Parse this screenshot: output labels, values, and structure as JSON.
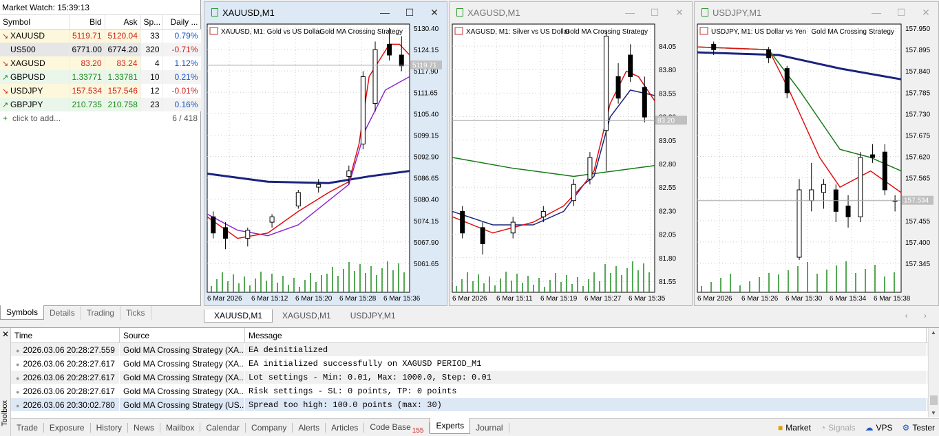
{
  "market_watch": {
    "title": "Market Watch: 15:39:13",
    "columns": [
      "Symbol",
      "Bid",
      "Ask",
      "Sp...",
      "Daily ..."
    ],
    "rows": [
      {
        "symbol": "XAUUSD",
        "dir": "down",
        "bid": "5119.71",
        "ask": "5120.04",
        "spread": "33",
        "daily": "0.79%",
        "daily_sign": "pos",
        "bg": "#fdf7dc"
      },
      {
        "symbol": "US500",
        "dir": "none",
        "bid": "6771.00",
        "ask": "6774.20",
        "spread": "320",
        "daily": "-0.71%",
        "daily_sign": "neg",
        "bg": "#e6e6e6"
      },
      {
        "symbol": "XAGUSD",
        "dir": "down",
        "bid": "83.20",
        "ask": "83.24",
        "spread": "4",
        "daily": "1.12%",
        "daily_sign": "pos",
        "bg": "#fdf7dc"
      },
      {
        "symbol": "GBPUSD",
        "dir": "up",
        "bid": "1.33771",
        "ask": "1.33781",
        "spread": "10",
        "daily": "0.21%",
        "daily_sign": "pos",
        "bg": "#eaf6ea"
      },
      {
        "symbol": "USDJPY",
        "dir": "down",
        "bid": "157.534",
        "ask": "157.546",
        "spread": "12",
        "daily": "-0.01%",
        "daily_sign": "neg",
        "bg": "#fdf7dc"
      },
      {
        "symbol": "GBPJPY",
        "dir": "up",
        "bid": "210.735",
        "ask": "210.758",
        "spread": "23",
        "daily": "0.16%",
        "daily_sign": "pos",
        "bg": "#eaf6ea"
      }
    ],
    "add_label": "click to add...",
    "count": "6 / 418",
    "tabs": [
      "Symbols",
      "Details",
      "Trading",
      "Ticks"
    ]
  },
  "charts": [
    {
      "title": "XAUUSD,M1",
      "info": "XAUUSD, M1:  Gold vs US Dollar",
      "ea": "Gold MA Crossing Strategy",
      "active": true,
      "price_labels": [
        "5130.40",
        "5124.15",
        "5117.90",
        "5111.65",
        "5105.40",
        "5099.15",
        "5092.90",
        "5086.65",
        "5080.40",
        "5074.15",
        "5067.90",
        "5061.65"
      ],
      "current_price": "5119.71",
      "time_labels": [
        "6 Mar 2026",
        "6 Mar 15:12",
        "6 Mar 15:20",
        "6 Mar 15:28",
        "6 Mar 15:36"
      ]
    },
    {
      "title": "XAGUSD,M1",
      "info": "XAGUSD, M1:  Silver vs US Dollar",
      "ea": "Gold MA Crossing Strategy",
      "active": false,
      "price_labels": [
        "84.05",
        "83.80",
        "83.55",
        "83.30",
        "83.05",
        "82.80",
        "82.55",
        "82.30",
        "82.05",
        "81.80",
        "81.55"
      ],
      "current_price": "83.20",
      "time_labels": [
        "6 Mar 2026",
        "6 Mar 15:11",
        "6 Mar 15:19",
        "6 Mar 15:27",
        "6 Mar 15:35"
      ]
    },
    {
      "title": "USDJPY,M1",
      "info": "USDJPY, M1:  US Dollar vs Yen",
      "ea": "Gold MA Crossing Strategy",
      "active": false,
      "price_labels": [
        "157.950",
        "157.895",
        "157.840",
        "157.785",
        "157.730",
        "157.675",
        "157.620",
        "157.565",
        "157.510",
        "157.455",
        "157.400",
        "157.345"
      ],
      "current_price": "157.534",
      "time_labels": [
        "6 Mar 2026",
        "6 Mar 15:26",
        "6 Mar 15:30",
        "6 Mar 15:34",
        "6 Mar 15:38"
      ]
    }
  ],
  "chart_tabs": [
    "XAUUSD,M1",
    "XAGUSD,M1",
    "USDJPY,M1"
  ],
  "toolbox": {
    "side_label": "Toolbox",
    "columns": [
      "Time",
      "Source",
      "Message"
    ],
    "rows": [
      {
        "time": "2026.03.06 20:28:27.559",
        "source": "Gold MA Crossing Strategy (XA...",
        "message": "EA deinitialized"
      },
      {
        "time": "2026.03.06 20:28:27.617",
        "source": "Gold MA Crossing Strategy (XA...",
        "message": "EA initialized successfully on XAGUSD PERIOD_M1"
      },
      {
        "time": "2026.03.06 20:28:27.617",
        "source": "Gold MA Crossing Strategy (XA...",
        "message": "Lot settings - Min: 0.01, Max: 1000.0, Step: 0.01"
      },
      {
        "time": "2026.03.06 20:28:27.617",
        "source": "Gold MA Crossing Strategy (XA...",
        "message": "Risk settings - SL: 0 points, TP: 0 points"
      },
      {
        "time": "2026.03.06 20:30:02.780",
        "source": "Gold MA Crossing Strategy (US...",
        "message": "Spread too high: 100.0 points (max: 30)"
      }
    ],
    "tabs": [
      "Trade",
      "Exposure",
      "History",
      "News",
      "Mailbox",
      "Calendar",
      "Company",
      "Alerts",
      "Articles",
      "Code Base",
      "Experts",
      "Journal"
    ],
    "code_base_badge": "155",
    "active_tab": "Experts",
    "status": {
      "market": "Market",
      "signals": "Signals",
      "vps": "VPS",
      "tester": "Tester"
    }
  }
}
